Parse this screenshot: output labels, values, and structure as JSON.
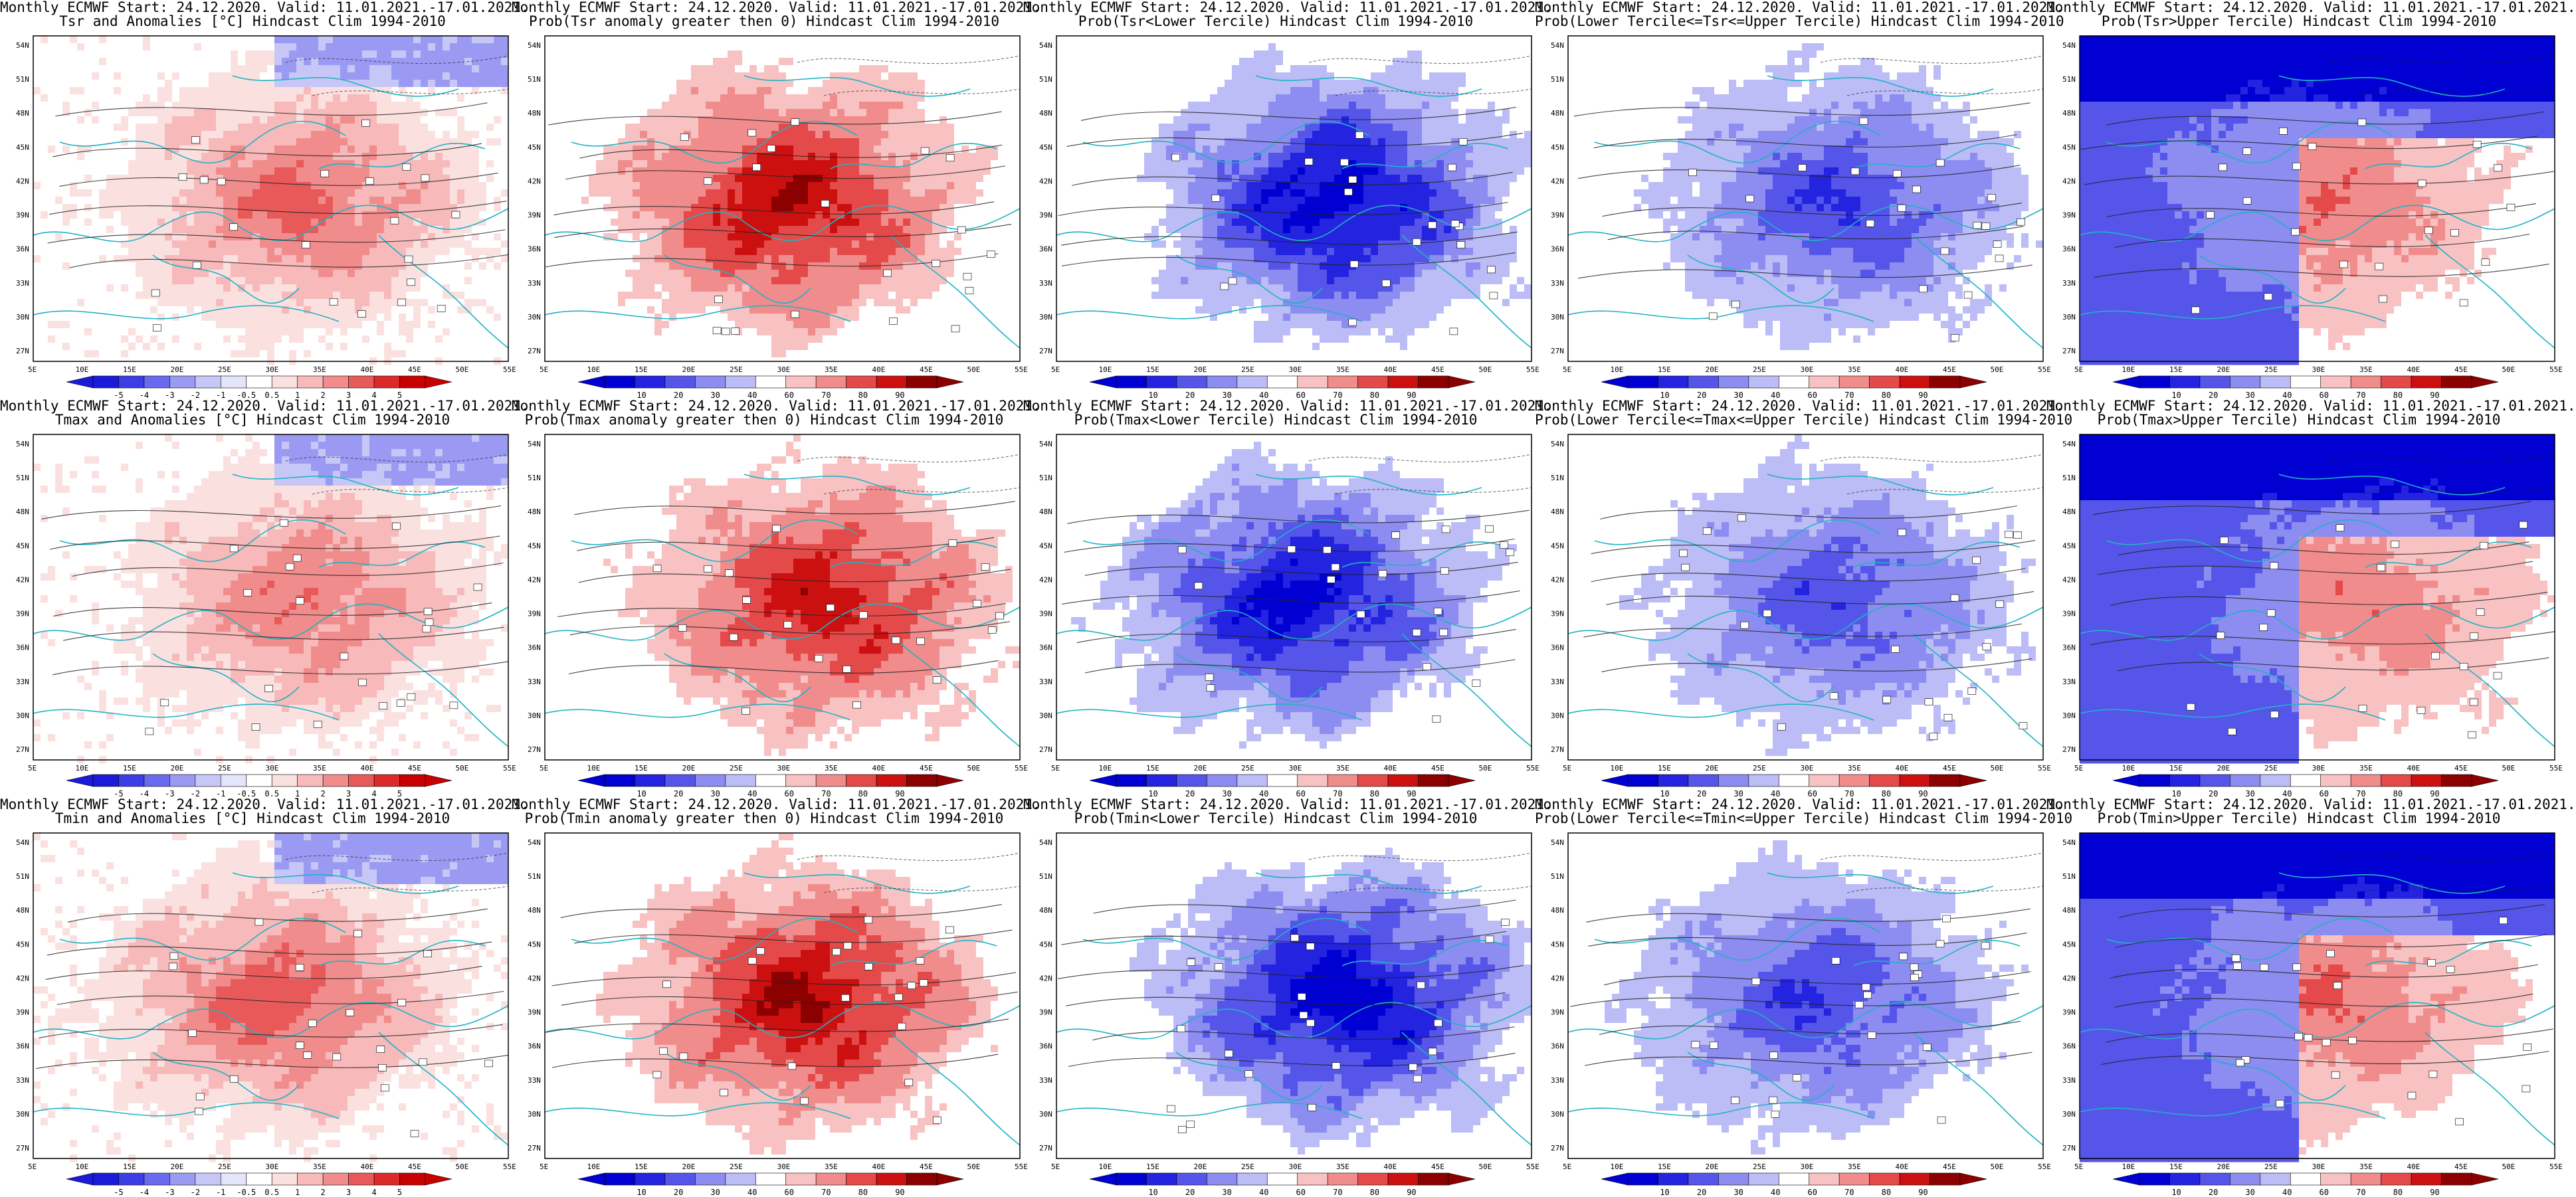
{
  "palettes": {
    "anom": [
      "#1a1adb",
      "#3d3de6",
      "#6a6aee",
      "#9a9af3",
      "#c7c7f7",
      "#e4e4fb",
      "#ffffff",
      "#fbe0e0",
      "#f7b9b9",
      "#f08c8c",
      "#e85a5a",
      "#dc2a2a",
      "#c80000"
    ],
    "prob": [
      "#0000d2",
      "#2323e0",
      "#5555ea",
      "#8c8cf1",
      "#bcbcf6",
      "#ffffff",
      "#f8c2c2",
      "#f08c8c",
      "#e44a4a",
      "#cc1010",
      "#8c0000"
    ]
  },
  "colorbar_labels": {
    "anom": [
      "-5",
      "-4",
      "-3",
      "-2",
      "-1",
      "-0.5",
      "0.5",
      "1",
      "2",
      "3",
      "4",
      "5"
    ],
    "prob": [
      "10",
      "20",
      "30",
      "40",
      "60",
      "70",
      "80",
      "90"
    ]
  },
  "axes": {
    "lat": [
      "54N",
      "51N",
      "48N",
      "45N",
      "42N",
      "39N",
      "36N",
      "33N",
      "30N",
      "27N"
    ],
    "lon": [
      "5E",
      "10E",
      "15E",
      "20E",
      "25E",
      "30E",
      "35E",
      "40E",
      "45E",
      "50E",
      "55E"
    ]
  },
  "panels": [
    {
      "title1": "Monthly ECMWF Start: 24.12.2020. Valid: 11.01.2021.-17.01.2021.",
      "title2": "Tsr and Anomalies [°C] Hindcast Clim 1994-2010",
      "field": "anom",
      "bias": 0.55,
      "seed": 3
    },
    {
      "title1": "Monthly ECMWF Start: 24.12.2020. Valid: 11.01.2021.-17.01.2021.",
      "title2": "Prob(Tsr anomaly greater then 0) Hindcast Clim 1994-2010",
      "field": "prob_hi",
      "bias": 0.75,
      "seed": 5
    },
    {
      "title1": "Monthly ECMWF Start: 24.12.2020. Valid: 11.01.2021.-17.01.2021.",
      "title2": "Prob(Tsr<Lower Tercile) Hindcast Clim 1994-2010",
      "field": "prob_lo",
      "bias": 0.9,
      "seed": 7
    },
    {
      "title1": "Monthly ECMWF Start: 24.12.2020. Valid: 11.01.2021.-17.01.2021.",
      "title2": "Prob(Lower Tercile<=Tsr<=Upper Tercile) Hindcast Clim 1994-2010",
      "field": "prob_lo",
      "bias": 0.6,
      "seed": 9
    },
    {
      "title1": "Monthly ECMWF Start: 24.12.2020. Valid: 11.01.2021.-17.01.2021.",
      "title2": "Prob(Tsr>Upper Tercile) Hindcast Clim 1994-2010",
      "field": "prob_mix",
      "bias": 0.5,
      "seed": 11
    },
    {
      "title1": "Monthly ECMWF Start: 24.12.2020. Valid: 11.01.2021.-17.01.2021.",
      "title2": "Tmax and Anomalies [°C] Hindcast Clim 1994-2010",
      "field": "anom",
      "bias": 0.5,
      "seed": 13
    },
    {
      "title1": "Monthly ECMWF Start: 24.12.2020. Valid: 11.01.2021.-17.01.2021.",
      "title2": "Prob(Tmax anomaly greater then 0) Hindcast Clim 1994-2010",
      "field": "prob_hi",
      "bias": 0.7,
      "seed": 15
    },
    {
      "title1": "Monthly ECMWF Start: 24.12.2020. Valid: 11.01.2021.-17.01.2021.",
      "title2": "Prob(Tmax<Lower Tercile) Hindcast Clim 1994-2010",
      "field": "prob_lo",
      "bias": 0.85,
      "seed": 17
    },
    {
      "title1": "Monthly ECMWF Start: 24.12.2020. Valid: 11.01.2021.-17.01.2021.",
      "title2": "Prob(Lower Tercile<=Tmax<=Upper Tercile) Hindcast Clim 1994-2010",
      "field": "prob_lo",
      "bias": 0.55,
      "seed": 19
    },
    {
      "title1": "Monthly ECMWF Start: 24.12.2020. Valid: 11.01.2021.-17.01.2021.",
      "title2": "Prob(Tmax>Upper Tercile) Hindcast Clim 1994-2010",
      "field": "prob_mix",
      "bias": 0.45,
      "seed": 21
    },
    {
      "title1": "Monthly ECMWF Start: 24.12.2020. Valid: 11.01.2021.-17.01.2021.",
      "title2": "Tmin and Anomalies [°C] Hindcast Clim 1994-2010",
      "field": "anom",
      "bias": 0.6,
      "seed": 23
    },
    {
      "title1": "Monthly ECMWF Start: 24.12.2020. Valid: 11.01.2021.-17.01.2021.",
      "title2": "Prob(Tmin anomaly greater then 0) Hindcast Clim 1994-2010",
      "field": "prob_hi",
      "bias": 0.78,
      "seed": 25
    },
    {
      "title1": "Monthly ECMWF Start: 24.12.2020. Valid: 11.01.2021.-17.01.2021.",
      "title2": "Prob(Tmin<Lower Tercile) Hindcast Clim 1994-2010",
      "field": "prob_lo",
      "bias": 0.92,
      "seed": 27
    },
    {
      "title1": "Monthly ECMWF Start: 24.12.2020. Valid: 11.01.2021.-17.01.2021.",
      "title2": "Prob(Lower Tercile<=Tmin<=Upper Tercile) Hindcast Clim 1994-2010",
      "field": "prob_lo",
      "bias": 0.6,
      "seed": 29
    },
    {
      "title1": "Monthly ECMWF Start: 24.12.2020. Valid: 11.01.2021.-17.01.2021.",
      "title2": "Prob(Tmin>Upper Tercile) Hindcast Clim 1994-2010",
      "field": "prob_mix",
      "bias": 0.5,
      "seed": 31
    }
  ]
}
